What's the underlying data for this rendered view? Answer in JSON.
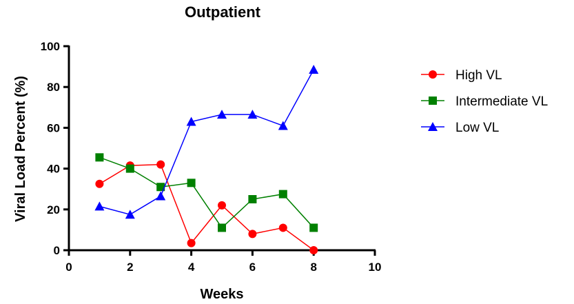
{
  "chart_data": {
    "type": "line",
    "title": "Outpatient",
    "xlabel": "Weeks",
    "ylabel": "Viral  Load Percent (%)",
    "xlim": [
      0,
      10
    ],
    "ylim": [
      0,
      100
    ],
    "xticks": [
      "0",
      "2",
      "4",
      "6",
      "8",
      "10"
    ],
    "yticks": [
      "0",
      "20",
      "40",
      "60",
      "80",
      "100"
    ],
    "grid": false,
    "legend_position": "right",
    "x": [
      1,
      2,
      3,
      4,
      5,
      6,
      7,
      8
    ],
    "series": [
      {
        "name": "High VL",
        "color": "#ff0000",
        "marker": "circle",
        "values": [
          32.5,
          41.5,
          42,
          3.5,
          22,
          8,
          11,
          0
        ]
      },
      {
        "name": "Intermediate VL",
        "color": "#008000",
        "marker": "square",
        "values": [
          45.5,
          40,
          31,
          33,
          11,
          25,
          27.5,
          11
        ]
      },
      {
        "name": "Low VL",
        "color": "#0000ff",
        "marker": "triangle",
        "values": [
          21.5,
          17.5,
          26.5,
          63,
          66.5,
          66.5,
          61,
          88.5
        ]
      }
    ]
  }
}
